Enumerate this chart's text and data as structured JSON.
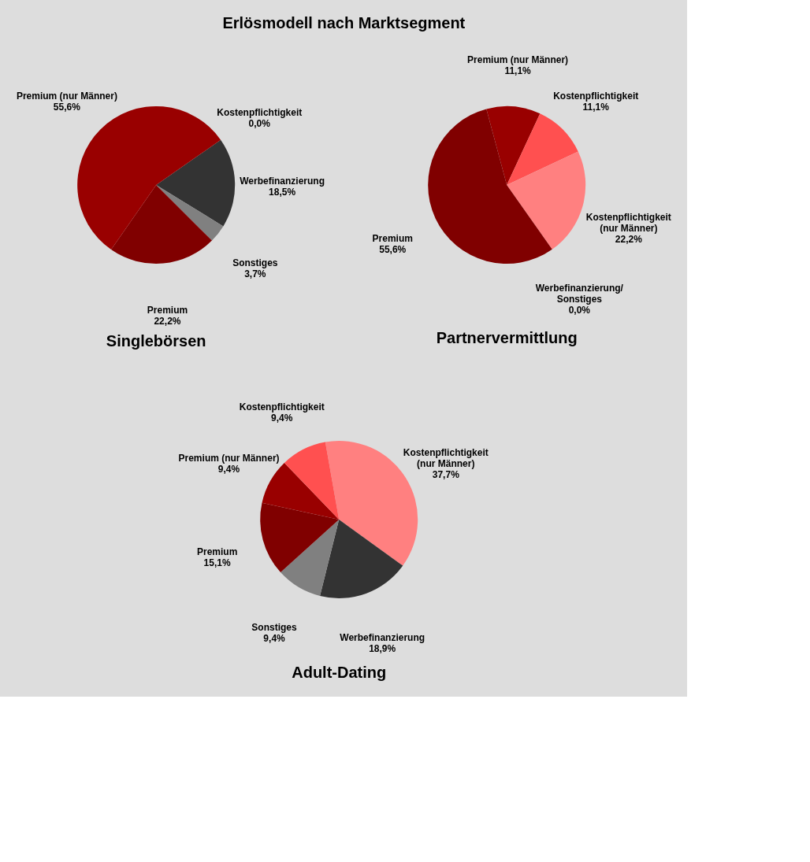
{
  "chart_data": [
    {
      "type": "other",
      "title": "Erlösmodell nach Marktsegment"
    },
    {
      "type": "pie",
      "title": "Singlebörsen",
      "categories": [
        "Kostenpflichtigkeit",
        "Werbefinanzierung",
        "Sonstiges",
        "Premium",
        "Premium (nur Männer)"
      ],
      "values": [
        0.0,
        18.5,
        3.7,
        22.2,
        55.6
      ],
      "value_labels": [
        "0,0%",
        "18,5%",
        "3,7%",
        "22,2%",
        "55,6%"
      ],
      "colors": [
        "#ff5050",
        "#333333",
        "#808080",
        "#800000",
        "#990000"
      ]
    },
    {
      "type": "pie",
      "title": "Partnervermittlung",
      "categories": [
        "Premium (nur Männer)",
        "Kostenpflichtigkeit",
        "Kostenpflichtigkeit (nur Männer)",
        "Werbefinanzierung/ Sonstiges",
        "Premium"
      ],
      "values": [
        11.1,
        11.1,
        22.2,
        0.0,
        55.6
      ],
      "value_labels": [
        "11,1%",
        "11,1%",
        "22,2%",
        "0,0%",
        "55,6%"
      ],
      "colors": [
        "#990000",
        "#ff5050",
        "#ff8080",
        "#333333",
        "#800000"
      ]
    },
    {
      "type": "pie",
      "title": "Adult-Dating",
      "categories": [
        "Kostenpflichtigkeit (nur Männer)",
        "Werbefinanzierung",
        "Sonstiges",
        "Premium",
        "Premium (nur Männer)",
        "Kostenpflichtigkeit"
      ],
      "values": [
        37.7,
        18.9,
        9.4,
        15.1,
        9.4,
        9.4
      ],
      "value_labels": [
        "37,7%",
        "18,9%",
        "9,4%",
        "15,1%",
        "9,4%",
        "9,4%"
      ],
      "colors": [
        "#ff8080",
        "#333333",
        "#808080",
        "#800000",
        "#990000",
        "#ff5050"
      ]
    }
  ]
}
